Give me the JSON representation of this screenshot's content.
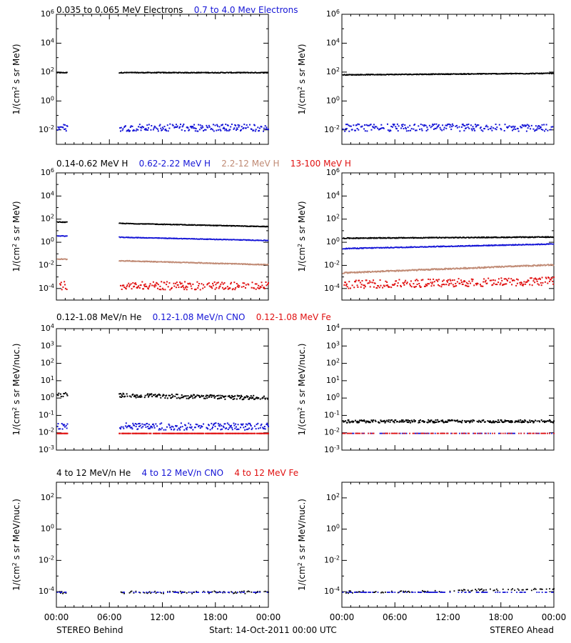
{
  "figure": {
    "start_label": "Start: 14-Oct-2011 00:00 UTC",
    "left_footer": "STEREO Behind",
    "right_footer": "STEREO Ahead",
    "x_ticks": [
      "00:00",
      "06:00",
      "12:00",
      "18:00",
      "00:00"
    ]
  },
  "colors": {
    "black": "#000000",
    "blue": "#1515d6",
    "tan": "#c08a74",
    "red": "#e01010"
  },
  "chart_data": [
    {
      "type": "scatter",
      "row": 0,
      "side": "behind",
      "log_y": true,
      "ylabel_base": "1/(cm",
      "ylabel_tail": " s sr MeV)",
      "ylim_exp": [
        -3,
        6
      ],
      "y_ticks_exp": [
        -2,
        0,
        2,
        4,
        6
      ],
      "series": [
        {
          "name": "0.035 to 0.065 MeV Electrons",
          "color": "#000000",
          "style": "line",
          "log10_base": 2.0,
          "log10_end": 2.0,
          "noise": 0.03,
          "gaps": [
            [
              1.2,
              7.0
            ]
          ]
        },
        {
          "name": "0.7 to 4.0 Mev Electrons",
          "color": "#1515d6",
          "style": "dots",
          "log10_base": -1.8,
          "log10_end": -1.8,
          "noise": 0.25,
          "gaps": [
            [
              1.2,
              7.0
            ]
          ]
        }
      ]
    },
    {
      "type": "scatter",
      "row": 0,
      "side": "ahead",
      "log_y": true,
      "ylabel_base": "1/(cm",
      "ylabel_tail": " s sr MeV)",
      "ylim_exp": [
        -3,
        6
      ],
      "y_ticks_exp": [
        -2,
        0,
        2,
        4,
        6
      ],
      "series": [
        {
          "name": "0.035 to 0.065 MeV Electrons",
          "color": "#000000",
          "style": "line",
          "log10_base": 1.85,
          "log10_end": 1.95,
          "noise": 0.03,
          "gaps": []
        },
        {
          "name": "0.7 to 4.0 Mev Electrons",
          "color": "#1515d6",
          "style": "dots",
          "log10_base": -1.8,
          "log10_end": -1.8,
          "noise": 0.25,
          "gaps": []
        }
      ]
    },
    {
      "type": "scatter",
      "row": 1,
      "side": "behind",
      "log_y": true,
      "ylabel_base": "1/(cm",
      "ylabel_tail": " s sr MeV)",
      "ylim_exp": [
        -5,
        6
      ],
      "y_ticks_exp": [
        -4,
        -2,
        0,
        2,
        4,
        6
      ],
      "series": [
        {
          "name": "0.14-0.62 MeV H",
          "color": "#000000",
          "style": "line",
          "log10_base": 1.8,
          "log10_end": 1.4,
          "noise": 0.03,
          "gaps": [
            [
              1.2,
              7.0
            ]
          ]
        },
        {
          "name": "0.62-2.22 MeV H",
          "color": "#1515d6",
          "style": "line",
          "log10_base": 0.6,
          "log10_end": 0.2,
          "noise": 0.03,
          "gaps": [
            [
              1.2,
              7.0
            ]
          ]
        },
        {
          "name": "2.2-12 MeV H",
          "color": "#c08a74",
          "style": "line",
          "log10_base": -1.4,
          "log10_end": -1.9,
          "noise": 0.04,
          "gaps": [
            [
              1.2,
              7.0
            ]
          ]
        },
        {
          "name": "13-100 MeV H",
          "color": "#e01010",
          "style": "dots",
          "log10_base": -3.7,
          "log10_end": -3.7,
          "noise": 0.35,
          "gaps": [
            [
              1.2,
              7.0
            ]
          ]
        }
      ]
    },
    {
      "type": "scatter",
      "row": 1,
      "side": "ahead",
      "log_y": true,
      "ylabel_base": "1/(cm",
      "ylabel_tail": " s sr MeV)",
      "ylim_exp": [
        -5,
        6
      ],
      "y_ticks_exp": [
        -4,
        -2,
        0,
        2,
        4,
        6
      ],
      "series": [
        {
          "name": "0.14-0.62 MeV H",
          "color": "#000000",
          "style": "line",
          "log10_base": 0.4,
          "log10_end": 0.5,
          "noise": 0.04,
          "gaps": []
        },
        {
          "name": "0.62-2.22 MeV H",
          "color": "#1515d6",
          "style": "line",
          "log10_base": -0.5,
          "log10_end": -0.1,
          "noise": 0.04,
          "gaps": []
        },
        {
          "name": "2.2-12 MeV H",
          "color": "#c08a74",
          "style": "line",
          "log10_base": -2.6,
          "log10_end": -1.9,
          "noise": 0.06,
          "gaps": []
        },
        {
          "name": "13-100 MeV H",
          "color": "#e01010",
          "style": "dots",
          "log10_base": -3.6,
          "log10_end": -3.3,
          "noise": 0.35,
          "gaps": []
        }
      ]
    },
    {
      "type": "scatter",
      "row": 2,
      "side": "behind",
      "log_y": true,
      "ylabel_base": "1/(cm",
      "ylabel_tail": " s sr MeV/nuc.)",
      "ylim_exp": [
        -3,
        4
      ],
      "y_ticks_exp": [
        -3,
        -2,
        -1,
        0,
        1,
        2,
        3,
        4
      ],
      "series": [
        {
          "name": "0.12-1.08 MeV/n He",
          "color": "#000000",
          "style": "dots",
          "log10_base": 0.25,
          "log10_end": 0.05,
          "noise": 0.12,
          "gaps": [
            [
              1.2,
              7.0
            ]
          ]
        },
        {
          "name": "0.12-1.08 MeV/n CNO",
          "color": "#1515d6",
          "style": "dots",
          "log10_base": -1.6,
          "log10_end": -1.6,
          "noise": 0.2,
          "gaps": [
            [
              1.2,
              7.0
            ]
          ]
        },
        {
          "name": "0.12-1.08 MeV Fe",
          "color": "#e01010",
          "style": "dots",
          "log10_base": -2.0,
          "log10_end": -2.0,
          "noise": 0.0,
          "gaps": [
            [
              1.2,
              7.0
            ]
          ]
        }
      ]
    },
    {
      "type": "scatter",
      "row": 2,
      "side": "ahead",
      "log_y": true,
      "ylabel_base": "1/(cm",
      "ylabel_tail": " s sr MeV/nuc.)",
      "ylim_exp": [
        -3,
        4
      ],
      "y_ticks_exp": [
        -3,
        -2,
        -1,
        0,
        1,
        2,
        3,
        4
      ],
      "series": [
        {
          "name": "0.12-1.08 MeV/n He",
          "color": "#000000",
          "style": "dots",
          "log10_base": -1.3,
          "log10_end": -1.3,
          "noise": 0.08,
          "gaps": []
        },
        {
          "name": "0.12-1.08 MeV/n CNO",
          "color": "#1515d6",
          "style": "sparse",
          "log10_base": -2.0,
          "log10_end": -2.0,
          "noise": 0.0,
          "gaps": []
        },
        {
          "name": "0.12-1.08 MeV Fe",
          "color": "#e01010",
          "style": "sparse",
          "log10_base": -2.0,
          "log10_end": -2.0,
          "noise": 0.0,
          "gaps": []
        }
      ]
    },
    {
      "type": "scatter",
      "row": 3,
      "side": "behind",
      "log_y": true,
      "ylabel_base": "1/(cm",
      "ylabel_tail": " s sr MeV/nuc.)",
      "ylim_exp": [
        -5,
        3
      ],
      "y_ticks_exp": [
        -4,
        -2,
        0,
        2
      ],
      "series": [
        {
          "name": "4 to 12 MeV/n He",
          "color": "#000000",
          "style": "sparse",
          "log10_base": -4.0,
          "log10_end": -4.0,
          "noise": 0.08,
          "gaps": [
            [
              1.2,
              7.0
            ]
          ]
        },
        {
          "name": "4 to 12 MeV/n CNO",
          "color": "#1515d6",
          "style": "sparse",
          "log10_base": -4.0,
          "log10_end": -4.0,
          "noise": 0.0,
          "gaps": [
            [
              1.2,
              7.0
            ]
          ]
        },
        {
          "name": "4 to 12 MeV Fe",
          "color": "#e01010",
          "style": "none",
          "log10_base": -4.0,
          "log10_end": -4.0,
          "noise": 0.0,
          "gaps": []
        }
      ]
    },
    {
      "type": "scatter",
      "row": 3,
      "side": "ahead",
      "log_y": true,
      "ylabel_base": "1/(cm",
      "ylabel_tail": " s sr MeV/nuc.)",
      "ylim_exp": [
        -5,
        3
      ],
      "y_ticks_exp": [
        -4,
        -2,
        0,
        2
      ],
      "series": [
        {
          "name": "4 to 12 MeV/n He",
          "color": "#000000",
          "style": "sparse",
          "log10_base": -4.0,
          "log10_end": -3.8,
          "noise": 0.08,
          "gaps": []
        },
        {
          "name": "4 to 12 MeV/n CNO",
          "color": "#1515d6",
          "style": "sparse",
          "log10_base": -4.0,
          "log10_end": -4.0,
          "noise": 0.0,
          "gaps": []
        },
        {
          "name": "4 to 12 MeV Fe",
          "color": "#e01010",
          "style": "none",
          "log10_base": -4.0,
          "log10_end": -4.0,
          "noise": 0.0,
          "gaps": []
        }
      ]
    }
  ]
}
